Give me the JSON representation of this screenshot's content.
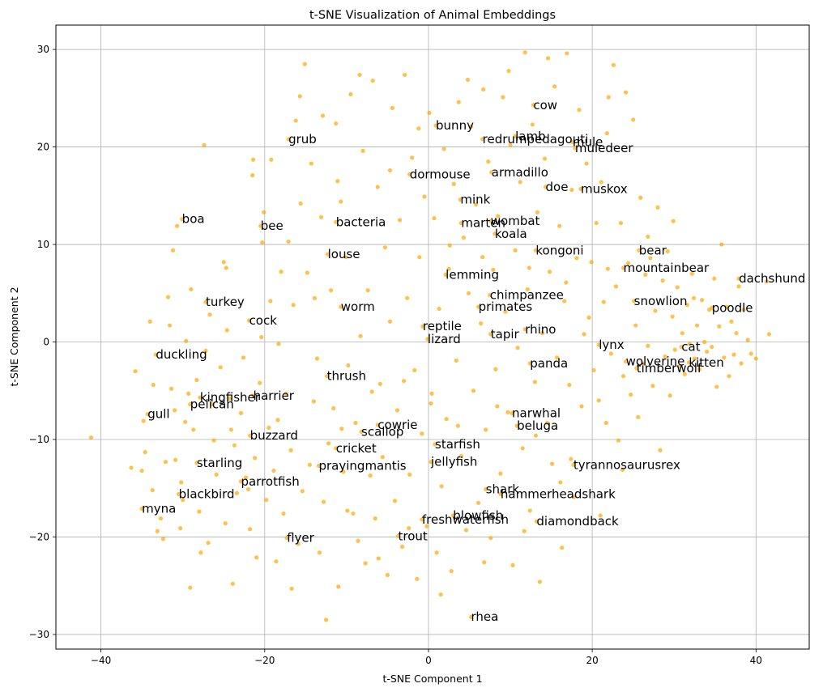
{
  "chart_data": {
    "type": "scatter",
    "title": "t-SNE Visualization of Animal Embeddings",
    "xlabel": "t-SNE Component 1",
    "ylabel": "t-SNE Component 2",
    "xlim": [
      -45.5,
      46.5
    ],
    "ylim": [
      -31.5,
      32.5
    ],
    "xticks": [
      -40,
      -20,
      0,
      20,
      40
    ],
    "yticks": [
      -30,
      -20,
      -10,
      0,
      10,
      20,
      30
    ],
    "grid": true,
    "point_color": "#FFA500",
    "point_alpha": 0.7,
    "labeled_points": [
      {
        "label": "cow",
        "x": 12.8,
        "y": 24.3
      },
      {
        "label": "bunny",
        "x": 0.9,
        "y": 22.2
      },
      {
        "label": "grub",
        "x": -17.1,
        "y": 20.8
      },
      {
        "label": "redrumpedagouti",
        "x": 6.6,
        "y": 20.8
      },
      {
        "label": "lamb",
        "x": 10.6,
        "y": 21.1
      },
      {
        "label": "mule",
        "x": 17.6,
        "y": 20.5
      },
      {
        "label": "muledeer",
        "x": 17.9,
        "y": 19.9
      },
      {
        "label": "armadillo",
        "x": 7.7,
        "y": 17.4
      },
      {
        "label": "dormouse",
        "x": -2.3,
        "y": 17.2
      },
      {
        "label": "doe",
        "x": 14.3,
        "y": 15.9
      },
      {
        "label": "muskox",
        "x": 18.6,
        "y": 15.7
      },
      {
        "label": "mink",
        "x": 3.9,
        "y": 14.6
      },
      {
        "label": "boa",
        "x": -30.1,
        "y": 12.6
      },
      {
        "label": "bee",
        "x": -20.5,
        "y": 11.9
      },
      {
        "label": "bacteria",
        "x": -11.3,
        "y": 12.3
      },
      {
        "label": "marten",
        "x": 4.0,
        "y": 12.2
      },
      {
        "label": "wombat",
        "x": 7.6,
        "y": 12.4
      },
      {
        "label": "koala",
        "x": 8.1,
        "y": 11.1
      },
      {
        "label": "kongoni",
        "x": 13.1,
        "y": 9.4
      },
      {
        "label": "bear",
        "x": 25.7,
        "y": 9.4
      },
      {
        "label": "louse",
        "x": -12.3,
        "y": 9.0
      },
      {
        "label": "mountainbear",
        "x": 23.8,
        "y": 7.6
      },
      {
        "label": "dachshund",
        "x": 37.9,
        "y": 6.5
      },
      {
        "label": "lemming",
        "x": 2.1,
        "y": 6.9
      },
      {
        "label": "chimpanzee",
        "x": 7.5,
        "y": 4.8
      },
      {
        "label": "turkey",
        "x": -27.2,
        "y": 4.1
      },
      {
        "label": "worm",
        "x": -10.7,
        "y": 3.6
      },
      {
        "label": "primates",
        "x": 6.1,
        "y": 3.6
      },
      {
        "label": "snowlion",
        "x": 25.1,
        "y": 4.2
      },
      {
        "label": "poodle",
        "x": 34.6,
        "y": 3.5
      },
      {
        "label": "cock",
        "x": -21.9,
        "y": 2.2
      },
      {
        "label": "reptile",
        "x": -0.7,
        "y": 1.6
      },
      {
        "label": "rhino",
        "x": 11.8,
        "y": 1.3
      },
      {
        "label": "tapir",
        "x": 7.6,
        "y": 0.8
      },
      {
        "label": "lizard",
        "x": -0.1,
        "y": 0.3
      },
      {
        "label": "lynx",
        "x": 20.8,
        "y": -0.3
      },
      {
        "label": "cat",
        "x": 30.9,
        "y": -0.5
      },
      {
        "label": "duckling",
        "x": -33.3,
        "y": -1.3
      },
      {
        "label": "panda",
        "x": 12.4,
        "y": -2.2
      },
      {
        "label": "wolverine",
        "x": 24.1,
        "y": -2.0
      },
      {
        "label": "kitten",
        "x": 31.8,
        "y": -2.1
      },
      {
        "label": "timberwolf",
        "x": 25.4,
        "y": -2.7
      },
      {
        "label": "thrush",
        "x": -12.4,
        "y": -3.5
      },
      {
        "label": "harrier",
        "x": -21.4,
        "y": -5.5
      },
      {
        "label": "kingfisher",
        "x": -27.9,
        "y": -5.7
      },
      {
        "label": "pelican",
        "x": -29.1,
        "y": -6.4
      },
      {
        "label": "gull",
        "x": -34.3,
        "y": -7.4
      },
      {
        "label": "narwhal",
        "x": 10.2,
        "y": -7.3
      },
      {
        "label": "beluga",
        "x": 10.8,
        "y": -8.6
      },
      {
        "label": "cowrie",
        "x": -6.2,
        "y": -8.5
      },
      {
        "label": "scallop",
        "x": -8.2,
        "y": -9.2
      },
      {
        "label": "buzzard",
        "x": -21.8,
        "y": -9.6
      },
      {
        "label": "starfish",
        "x": 0.8,
        "y": -10.5
      },
      {
        "label": "cricket",
        "x": -11.3,
        "y": -10.9
      },
      {
        "label": "jellyfish",
        "x": 0.3,
        "y": -12.3
      },
      {
        "label": "prayingmantis",
        "x": -13.4,
        "y": -12.7
      },
      {
        "label": "tyrannosaurusrex",
        "x": 17.7,
        "y": -12.6
      },
      {
        "label": "starling",
        "x": -28.3,
        "y": -12.4
      },
      {
        "label": "parrotfish",
        "x": -22.9,
        "y": -14.3
      },
      {
        "label": "shark",
        "x": 7.0,
        "y": -15.1
      },
      {
        "label": "hammerheadshark",
        "x": 8.8,
        "y": -15.6
      },
      {
        "label": "blackbird",
        "x": -30.5,
        "y": -15.6
      },
      {
        "label": "myna",
        "x": -35.0,
        "y": -17.1
      },
      {
        "label": "blowfish",
        "x": 3.0,
        "y": -17.8
      },
      {
        "label": "freshwaterfish",
        "x": -0.8,
        "y": -18.2
      },
      {
        "label": "diamondback",
        "x": 13.2,
        "y": -18.4
      },
      {
        "label": "trout",
        "x": -3.7,
        "y": -19.9
      },
      {
        "label": "flyer",
        "x": -17.3,
        "y": -20.1
      },
      {
        "label": "rhea",
        "x": 5.2,
        "y": -28.2
      }
    ],
    "unlabeled_points": [
      [
        -41.2,
        -9.8
      ],
      [
        -36.3,
        -12.9
      ],
      [
        -35.8,
        -3.0
      ],
      [
        -35.0,
        -13.2
      ],
      [
        -34.6,
        -11.3
      ],
      [
        -34.0,
        2.1
      ],
      [
        -33.7,
        -15.2
      ],
      [
        -33.1,
        -19.4
      ],
      [
        -32.7,
        -18.1
      ],
      [
        -32.4,
        -20.2
      ],
      [
        -32.1,
        -12.3
      ],
      [
        -31.8,
        4.6
      ],
      [
        -31.6,
        1.7
      ],
      [
        -31.4,
        -4.8
      ],
      [
        -31.2,
        9.4
      ],
      [
        -30.9,
        -12.1
      ],
      [
        -30.7,
        11.9
      ],
      [
        -30.3,
        -19.1
      ],
      [
        -30.0,
        -16.2
      ],
      [
        -29.7,
        -8.2
      ],
      [
        -29.6,
        0.1
      ],
      [
        -29.3,
        -5.3
      ],
      [
        -29.1,
        -25.2
      ],
      [
        -28.7,
        -9.0
      ],
      [
        -28.3,
        -3.9
      ],
      [
        -28.0,
        -17.4
      ],
      [
        -27.8,
        -21.6
      ],
      [
        -27.2,
        -0.9
      ],
      [
        -26.7,
        2.8
      ],
      [
        -26.4,
        -6.4
      ],
      [
        -26.2,
        -10.1
      ],
      [
        -25.9,
        -13.6
      ],
      [
        -25.4,
        -2.6
      ],
      [
        -25.0,
        8.2
      ],
      [
        -24.8,
        -18.6
      ],
      [
        -24.6,
        1.2
      ],
      [
        -24.3,
        -5.8
      ],
      [
        -23.9,
        -24.8
      ],
      [
        -23.7,
        -10.6
      ],
      [
        -23.4,
        -15.5
      ],
      [
        -22.9,
        -7.3
      ],
      [
        -22.6,
        -1.6
      ],
      [
        -22.3,
        -13.9
      ],
      [
        -21.8,
        -19.2
      ],
      [
        -21.5,
        17.1
      ],
      [
        -21.4,
        18.7
      ],
      [
        -21.2,
        -11.9
      ],
      [
        -21.0,
        -22.1
      ],
      [
        -20.6,
        -4.2
      ],
      [
        -20.4,
        0.5
      ],
      [
        -20.1,
        13.3
      ],
      [
        -19.8,
        -16.2
      ],
      [
        -19.5,
        -8.8
      ],
      [
        -19.3,
        4.2
      ],
      [
        -18.9,
        -13.2
      ],
      [
        -18.6,
        -22.5
      ],
      [
        -18.3,
        -0.2
      ],
      [
        -18.0,
        7.2
      ],
      [
        -17.7,
        -17.6
      ],
      [
        -17.4,
        -5.3
      ],
      [
        -17.1,
        10.3
      ],
      [
        -16.8,
        -11.1
      ],
      [
        -16.5,
        3.8
      ],
      [
        -16.2,
        22.7
      ],
      [
        -15.9,
        -20.7
      ],
      [
        -15.7,
        25.2
      ],
      [
        -15.4,
        -15.3
      ],
      [
        -15.1,
        28.5
      ],
      [
        -14.8,
        7.1
      ],
      [
        -14.5,
        -12.6
      ],
      [
        -14.3,
        18.3
      ],
      [
        -13.9,
        4.5
      ],
      [
        -13.6,
        -1.7
      ],
      [
        -13.3,
        -21.6
      ],
      [
        -13.1,
        12.8
      ],
      [
        -12.8,
        -16.4
      ],
      [
        -12.5,
        -28.5
      ],
      [
        -12.2,
        -10.4
      ],
      [
        -11.9,
        5.3
      ],
      [
        -11.6,
        -6.8
      ],
      [
        -11.3,
        22.4
      ],
      [
        -11.0,
        -25.1
      ],
      [
        -10.7,
        14.4
      ],
      [
        -10.4,
        -13.3
      ],
      [
        -10.1,
        8.7
      ],
      [
        -9.8,
        -2.4
      ],
      [
        -9.5,
        25.4
      ],
      [
        -9.2,
        -17.6
      ],
      [
        -8.9,
        -8.3
      ],
      [
        -8.6,
        -20.4
      ],
      [
        -8.3,
        0.6
      ],
      [
        -8.0,
        19.6
      ],
      [
        -7.7,
        -22.7
      ],
      [
        -7.4,
        5.3
      ],
      [
        -7.1,
        -13.7
      ],
      [
        -6.8,
        26.8
      ],
      [
        -6.5,
        -18.1
      ],
      [
        -6.2,
        15.9
      ],
      [
        -5.9,
        -4.3
      ],
      [
        -5.6,
        -11.8
      ],
      [
        -5.3,
        9.7
      ],
      [
        -5.0,
        -23.9
      ],
      [
        -4.7,
        2.1
      ],
      [
        -4.4,
        24.0
      ],
      [
        -4.1,
        -16.3
      ],
      [
        -3.8,
        -7.0
      ],
      [
        -3.5,
        12.5
      ],
      [
        -3.2,
        -21.0
      ],
      [
        -2.9,
        27.4
      ],
      [
        -2.6,
        4.5
      ],
      [
        -2.3,
        -13.6
      ],
      [
        -2.0,
        18.9
      ],
      [
        -1.7,
        -2.9
      ],
      [
        -1.4,
        -24.3
      ],
      [
        -1.1,
        8.7
      ],
      [
        -0.8,
        -9.4
      ],
      [
        -0.5,
        14.9
      ],
      [
        -0.2,
        -18.9
      ],
      [
        0.1,
        23.5
      ],
      [
        0.4,
        -5.3
      ],
      [
        0.7,
        12.7
      ],
      [
        1.0,
        -21.6
      ],
      [
        1.3,
        3.4
      ],
      [
        1.6,
        -14.8
      ],
      [
        1.9,
        19.8
      ],
      [
        2.2,
        -7.9
      ],
      [
        2.5,
        7.5
      ],
      [
        2.8,
        -23.5
      ],
      [
        3.1,
        16.2
      ],
      [
        3.4,
        -1.9
      ],
      [
        3.7,
        24.6
      ],
      [
        4.0,
        -11.7
      ],
      [
        4.3,
        10.7
      ],
      [
        4.6,
        -19.3
      ],
      [
        4.9,
        5.0
      ],
      [
        5.2,
        22.1
      ],
      [
        5.5,
        -5.0
      ],
      [
        5.8,
        14.1
      ],
      [
        6.1,
        -16.5
      ],
      [
        6.4,
        1.9
      ],
      [
        6.7,
        25.9
      ],
      [
        7.0,
        -9.0
      ],
      [
        7.3,
        18.5
      ],
      [
        7.6,
        -20.1
      ],
      [
        7.9,
        7.4
      ],
      [
        8.2,
        -2.8
      ],
      [
        8.5,
        12.9
      ],
      [
        8.8,
        -13.5
      ],
      [
        9.1,
        25.1
      ],
      [
        9.4,
        3.1
      ],
      [
        9.7,
        -7.2
      ],
      [
        10.0,
        20.2
      ],
      [
        10.3,
        -22.9
      ],
      [
        10.6,
        9.4
      ],
      [
        10.9,
        -0.6
      ],
      [
        11.2,
        16.4
      ],
      [
        11.5,
        -10.9
      ],
      [
        11.8,
        29.7
      ],
      [
        12.1,
        5.4
      ],
      [
        12.4,
        -17.3
      ],
      [
        12.7,
        22.3
      ],
      [
        13.0,
        -4.1
      ],
      [
        13.3,
        13.3
      ],
      [
        13.6,
        -24.6
      ],
      [
        13.9,
        0.9
      ],
      [
        14.2,
        18.8
      ],
      [
        14.5,
        -8.3
      ],
      [
        14.8,
        7.2
      ],
      [
        15.1,
        -12.5
      ],
      [
        15.4,
        26.2
      ],
      [
        15.7,
        -1.6
      ],
      [
        16.0,
        11.9
      ],
      [
        16.3,
        -21.1
      ],
      [
        16.6,
        4.2
      ],
      [
        16.9,
        29.6
      ],
      [
        17.2,
        -4.4
      ],
      [
        17.5,
        15.6
      ],
      [
        17.8,
        -15.9
      ],
      [
        18.1,
        8.6
      ],
      [
        18.4,
        23.8
      ],
      [
        18.7,
        -6.6
      ],
      [
        19.0,
        0.8
      ],
      [
        19.3,
        18.3
      ],
      [
        19.6,
        2.5
      ],
      [
        19.9,
        8.2
      ],
      [
        20.2,
        -2.9
      ],
      [
        20.5,
        12.2
      ],
      [
        20.8,
        -6.0
      ],
      [
        21.1,
        16.4
      ],
      [
        21.4,
        4.1
      ],
      [
        21.7,
        -8.3
      ],
      [
        22.0,
        25.1
      ],
      [
        22.3,
        -1.2
      ],
      [
        22.6,
        28.4
      ],
      [
        22.9,
        5.7
      ],
      [
        23.2,
        -10.1
      ],
      [
        23.5,
        12.2
      ],
      [
        23.8,
        -3.5
      ],
      [
        24.1,
        25.6
      ],
      [
        24.4,
        8.1
      ],
      [
        24.7,
        -5.4
      ],
      [
        25.0,
        22.8
      ],
      [
        25.3,
        1.7
      ],
      [
        25.6,
        -7.7
      ],
      [
        25.9,
        14.8
      ],
      [
        26.2,
        -2.2
      ],
      [
        26.5,
        6.9
      ],
      [
        26.8,
        -0.4
      ],
      [
        27.1,
        8.6
      ],
      [
        27.4,
        -4.5
      ],
      [
        27.7,
        3.2
      ],
      [
        28.0,
        13.8
      ],
      [
        28.3,
        -11.1
      ],
      [
        28.6,
        6.3
      ],
      [
        28.9,
        -1.5
      ],
      [
        29.2,
        9.3
      ],
      [
        29.5,
        -5.5
      ],
      [
        29.8,
        2.6
      ],
      [
        30.1,
        -0.8
      ],
      [
        30.4,
        5.6
      ],
      [
        30.7,
        -2.5
      ],
      [
        31.0,
        0.9
      ],
      [
        31.3,
        -3.3
      ],
      [
        31.6,
        3.8
      ],
      [
        31.9,
        -0.2
      ],
      [
        32.2,
        7.0
      ],
      [
        32.5,
        -1.7
      ],
      [
        32.8,
        1.7
      ],
      [
        33.1,
        -2.8
      ],
      [
        33.4,
        4.3
      ],
      [
        33.7,
        0.0
      ],
      [
        34.0,
        -1.0
      ],
      [
        34.3,
        3.3
      ],
      [
        34.6,
        -0.5
      ],
      [
        34.9,
        6.5
      ],
      [
        35.2,
        -4.6
      ],
      [
        35.5,
        1.6
      ],
      [
        35.8,
        10.0
      ],
      [
        36.1,
        -1.6
      ],
      [
        36.4,
        3.6
      ],
      [
        36.7,
        -3.5
      ],
      [
        37.0,
        2.1
      ],
      [
        37.3,
        -1.3
      ],
      [
        37.6,
        0.9
      ],
      [
        37.9,
        5.7
      ],
      [
        38.2,
        -2.2
      ],
      [
        38.5,
        3.3
      ],
      [
        39.0,
        0.2
      ],
      [
        39.4,
        -1.2
      ],
      [
        40.0,
        -1.7
      ],
      [
        41.3,
        6.2
      ],
      [
        41.6,
        0.8
      ],
      [
        -27.4,
        20.2
      ],
      [
        -19.2,
        18.7
      ],
      [
        -12.9,
        23.2
      ],
      [
        -8.4,
        27.4
      ],
      [
        -1.2,
        21.9
      ],
      [
        4.8,
        26.9
      ],
      [
        9.8,
        27.8
      ],
      [
        14.6,
        29.1
      ],
      [
        21.8,
        21.4
      ],
      [
        -33.6,
        -4.4
      ],
      [
        -30.2,
        -14.4
      ],
      [
        -26.9,
        -20.6
      ],
      [
        -22.0,
        -15.1
      ],
      [
        -16.7,
        -25.3
      ],
      [
        -9.9,
        -17.3
      ],
      [
        -6.1,
        -22.2
      ],
      [
        -2.4,
        -19.1
      ],
      [
        1.5,
        -25.9
      ],
      [
        6.8,
        -22.6
      ],
      [
        11.7,
        -19.4
      ],
      [
        16.1,
        -14.4
      ],
      [
        21.0,
        -17.8
      ],
      [
        -34.8,
        -8.1
      ],
      [
        -31.0,
        -7.0
      ],
      [
        -24.1,
        -9.0
      ],
      [
        -18.4,
        -8.0
      ],
      [
        -14.0,
        -6.1
      ],
      [
        -10.6,
        -8.9
      ],
      [
        -6.9,
        -5.1
      ],
      [
        -3.0,
        -4.0
      ],
      [
        0.3,
        -6.3
      ],
      [
        3.6,
        -8.6
      ],
      [
        8.4,
        -6.6
      ],
      [
        13.1,
        -9.6
      ],
      [
        17.4,
        -12.0
      ],
      [
        23.7,
        -13.1
      ],
      [
        -29.0,
        5.4
      ],
      [
        -24.7,
        7.6
      ],
      [
        -20.3,
        10.2
      ],
      [
        -15.6,
        14.2
      ],
      [
        -11.1,
        16.5
      ],
      [
        -4.7,
        17.6
      ],
      [
        2.6,
        9.9
      ],
      [
        6.6,
        8.7
      ],
      [
        12.3,
        7.6
      ],
      [
        16.8,
        6.1
      ],
      [
        21.9,
        7.5
      ],
      [
        26.8,
        10.8
      ],
      [
        29.9,
        12.4
      ],
      [
        32.4,
        4.5
      ]
    ]
  }
}
